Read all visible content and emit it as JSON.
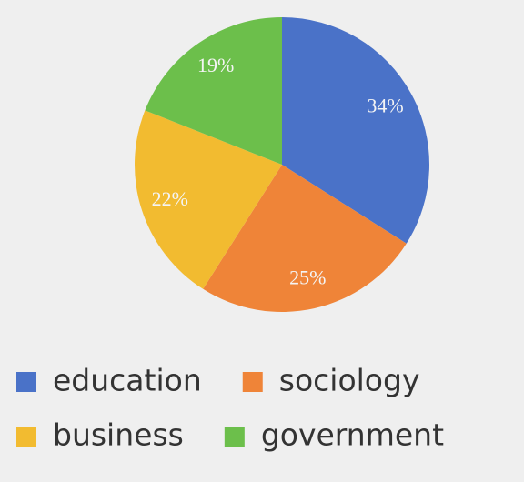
{
  "chart_data": {
    "type": "pie",
    "categories": [
      "education",
      "sociology",
      "business",
      "government"
    ],
    "values": [
      34,
      25,
      22,
      19
    ],
    "value_labels": [
      "34%",
      "25%",
      "22%",
      "19%"
    ],
    "colors": [
      "#4a72c8",
      "#ef8438",
      "#f2bb30",
      "#6cbf4b"
    ],
    "legend": "bottom"
  }
}
